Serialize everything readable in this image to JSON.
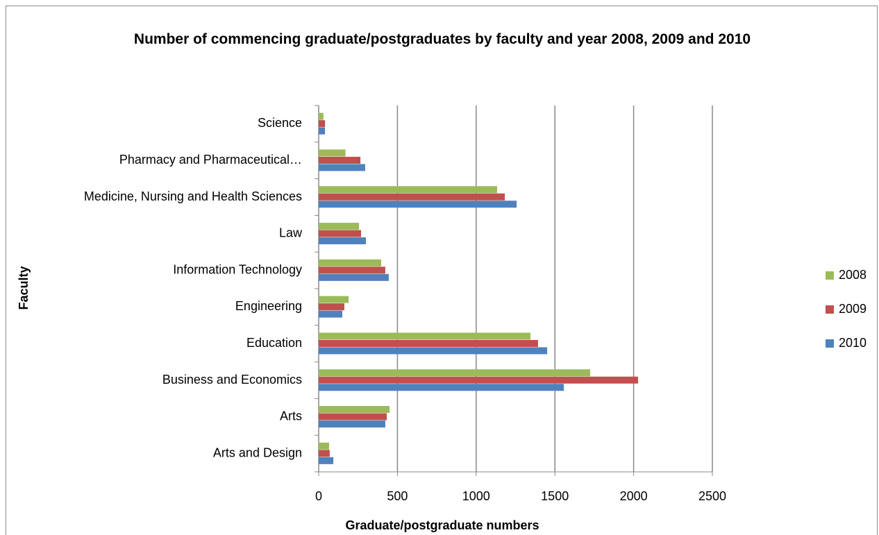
{
  "chart_data": {
    "type": "bar",
    "orientation": "horizontal",
    "title": "Number of commencing graduate/postgraduates by faculty and year 2008, 2009 and 2010",
    "x_label": "Graduate/postgraduate numbers",
    "y_label": "Faculty",
    "categories": [
      "Arts and Design",
      "Arts",
      "Business and Economics",
      "Education",
      "Engineering",
      "Information Technology",
      "Law",
      "Medicine, Nursing and Health Sciences",
      "Pharmacy and Pharmaceutical…",
      "Science"
    ],
    "series": [
      {
        "name": "2008",
        "color": "#9bbb59",
        "values": [
          66,
          450,
          1724,
          1345,
          190,
          397,
          256,
          1133,
          170,
          30
        ]
      },
      {
        "name": "2009",
        "color": "#c0504d",
        "values": [
          70,
          432,
          2028,
          1393,
          163,
          423,
          269,
          1182,
          265,
          40
        ]
      },
      {
        "name": "2010",
        "color": "#4f81bd",
        "values": [
          93,
          423,
          1557,
          1451,
          150,
          445,
          300,
          1257,
          295,
          40
        ]
      }
    ],
    "xlim": [
      0,
      2500
    ],
    "xticks": [
      0,
      500,
      1000,
      1500,
      2000,
      2500
    ],
    "grid": true,
    "legend": "right"
  }
}
